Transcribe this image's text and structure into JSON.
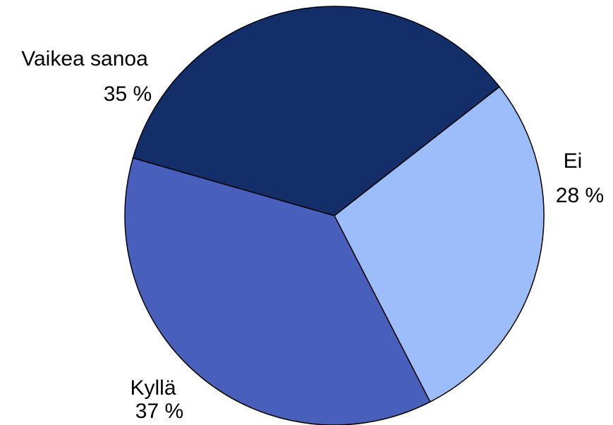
{
  "chart_data": {
    "type": "pie",
    "title": "",
    "slices": [
      {
        "label": "Ei",
        "value": 28,
        "value_label": "28 %",
        "color": "#9dbdfa"
      },
      {
        "label": "Kyllä",
        "value": 37,
        "value_label": "37 %",
        "color": "#4860bb"
      },
      {
        "label": "Vaikea sanoa",
        "value": 35,
        "value_label": "35 %",
        "color": "#132e68"
      }
    ],
    "start_angle_deg": -38,
    "direction": "clockwise",
    "legend": "none"
  }
}
